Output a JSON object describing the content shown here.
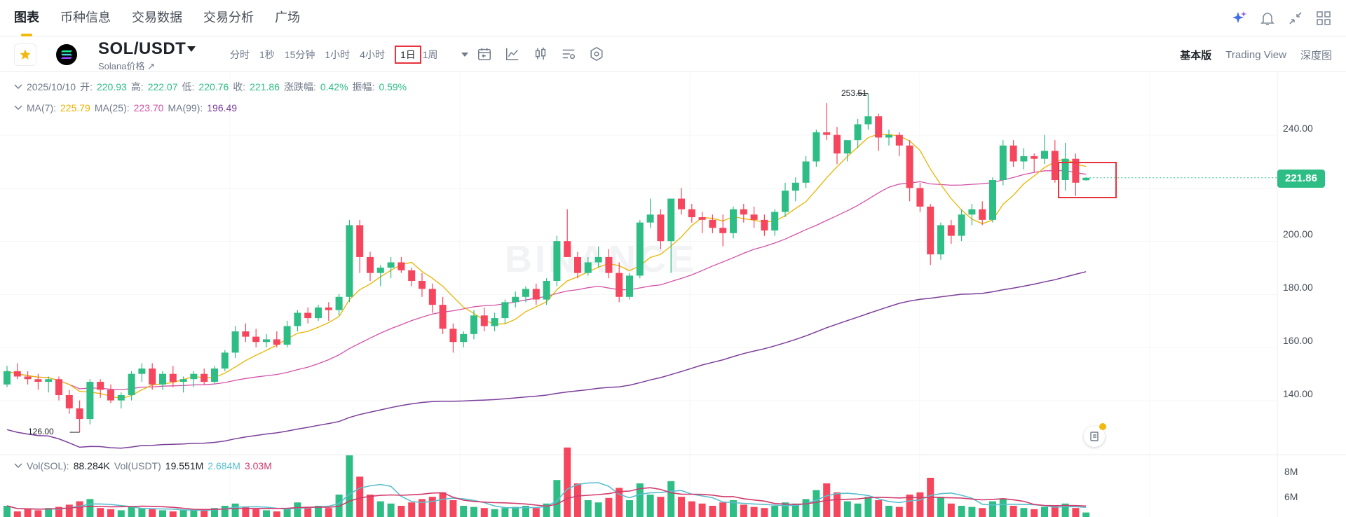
{
  "nav": {
    "tabs": [
      "图表",
      "币种信息",
      "交易数据",
      "交易分析",
      "广场"
    ],
    "active": 0
  },
  "symbol": {
    "pair": "SOL/USDT",
    "subtitle": "Solana价格 ↗",
    "intervals": [
      "分时",
      "1秒",
      "15分钟",
      "1小时",
      "4小时",
      "1日",
      "1周"
    ],
    "selected_interval": "1日"
  },
  "views": [
    "基本版",
    "Trading View",
    "深度图"
  ],
  "ohlc": {
    "date": "2025/10/10",
    "open_label": "开:",
    "open": "220.93",
    "high_label": "高:",
    "high": "222.07",
    "low_label": "低:",
    "low": "220.76",
    "close_label": "收:",
    "close": "221.86",
    "change_label": "涨跌幅:",
    "change": "0.42%",
    "amp_label": "振幅:",
    "amp": "0.59%"
  },
  "ma": {
    "ma7_label": "MA(7):",
    "ma7": "225.79",
    "ma25_label": "MA(25):",
    "ma25": "223.70",
    "ma99_label": "MA(99):",
    "ma99": "196.49"
  },
  "vol": {
    "sol_label": "Vol(SOL):",
    "sol": "88.284K",
    "usdt_label": "Vol(USDT)",
    "usdt": "19.551M",
    "ma_a": "2.684M",
    "ma_b": "3.03M"
  },
  "price_axis": [
    "240.00",
    "220.00",
    "200.00",
    "180.00",
    "160.00",
    "140.00"
  ],
  "vol_axis": [
    "8M",
    "6M"
  ],
  "current_price": "221.86",
  "high_marker": "253.51",
  "low_marker": "126.00",
  "watermark": "BINANCE",
  "colors": {
    "up": "#2ebd85",
    "down": "#f6465d",
    "accent": "#f0b90b",
    "ma7": "#e8b400",
    "ma25": "#d352a8",
    "ma99": "#7b3e9a"
  },
  "chart_data": {
    "type": "candlestick",
    "y_range": [
      118,
      260
    ],
    "candles": [
      [
        144,
        151,
        143,
        149
      ],
      [
        149,
        152,
        146,
        147
      ],
      [
        147,
        149,
        144,
        146
      ],
      [
        146,
        148,
        142,
        145
      ],
      [
        145,
        147,
        141,
        146
      ],
      [
        146,
        147,
        138,
        140
      ],
      [
        140,
        142,
        133,
        135
      ],
      [
        135,
        138,
        126,
        131
      ],
      [
        131,
        146,
        129,
        145
      ],
      [
        145,
        146,
        139,
        142
      ],
      [
        142,
        144,
        137,
        138
      ],
      [
        138,
        141,
        135,
        140
      ],
      [
        140,
        149,
        138,
        148
      ],
      [
        148,
        152,
        145,
        150
      ],
      [
        150,
        152,
        142,
        144
      ],
      [
        144,
        149,
        142,
        148
      ],
      [
        148,
        151,
        143,
        145
      ],
      [
        145,
        147,
        141,
        146
      ],
      [
        146,
        149,
        143,
        148
      ],
      [
        148,
        150,
        144,
        145
      ],
      [
        145,
        151,
        144,
        150
      ],
      [
        150,
        157,
        149,
        156
      ],
      [
        156,
        166,
        154,
        164
      ],
      [
        164,
        167,
        160,
        162
      ],
      [
        162,
        165,
        158,
        160
      ],
      [
        160,
        163,
        158,
        161
      ],
      [
        161,
        164,
        158,
        159
      ],
      [
        159,
        168,
        158,
        166
      ],
      [
        166,
        172,
        164,
        171
      ],
      [
        171,
        173,
        167,
        169
      ],
      [
        169,
        174,
        168,
        173
      ],
      [
        173,
        175,
        168,
        172
      ],
      [
        172,
        178,
        170,
        177
      ],
      [
        177,
        206,
        175,
        204
      ],
      [
        204,
        206,
        186,
        192
      ],
      [
        192,
        194,
        183,
        186
      ],
      [
        186,
        189,
        181,
        188
      ],
      [
        188,
        192,
        184,
        190
      ],
      [
        190,
        192,
        186,
        187
      ],
      [
        187,
        188,
        181,
        183
      ],
      [
        183,
        186,
        177,
        180
      ],
      [
        180,
        182,
        171,
        174
      ],
      [
        174,
        177,
        163,
        165
      ],
      [
        165,
        167,
        156,
        160
      ],
      [
        160,
        164,
        158,
        163
      ],
      [
        163,
        172,
        161,
        170
      ],
      [
        170,
        173,
        164,
        166
      ],
      [
        166,
        171,
        164,
        169
      ],
      [
        169,
        176,
        167,
        175
      ],
      [
        175,
        179,
        173,
        177
      ],
      [
        177,
        181,
        175,
        180
      ],
      [
        180,
        182,
        174,
        176
      ],
      [
        176,
        184,
        174,
        183
      ],
      [
        183,
        200,
        181,
        198
      ],
      [
        198,
        210,
        192,
        192
      ],
      [
        192,
        194,
        184,
        186
      ],
      [
        186,
        192,
        185,
        190
      ],
      [
        190,
        196,
        188,
        192
      ],
      [
        192,
        195,
        184,
        186
      ],
      [
        186,
        190,
        175,
        177
      ],
      [
        177,
        186,
        176,
        185
      ],
      [
        185,
        206,
        184,
        205
      ],
      [
        205,
        214,
        203,
        208
      ],
      [
        208,
        210,
        195,
        198
      ],
      [
        198,
        214,
        186,
        214
      ],
      [
        214,
        218,
        208,
        210
      ],
      [
        210,
        212,
        205,
        207
      ],
      [
        207,
        209,
        201,
        206
      ],
      [
        206,
        208,
        201,
        203
      ],
      [
        203,
        208,
        196,
        201
      ],
      [
        201,
        211,
        199,
        210
      ],
      [
        210,
        212,
        205,
        208
      ],
      [
        208,
        211,
        203,
        206
      ],
      [
        206,
        208,
        200,
        202
      ],
      [
        202,
        210,
        200,
        209
      ],
      [
        209,
        220,
        207,
        217
      ],
      [
        217,
        222,
        213,
        220
      ],
      [
        220,
        230,
        218,
        228
      ],
      [
        228,
        240,
        226,
        239
      ],
      [
        239,
        250,
        236,
        238
      ],
      [
        238,
        241,
        227,
        231
      ],
      [
        231,
        236,
        228,
        236
      ],
      [
        236,
        244,
        233,
        242
      ],
      [
        242,
        253.5,
        240,
        245
      ],
      [
        245,
        246,
        232,
        237
      ],
      [
        237,
        240,
        234,
        238
      ],
      [
        238,
        239,
        230,
        234
      ],
      [
        234,
        236,
        213,
        218
      ],
      [
        218,
        220,
        209,
        211
      ],
      [
        211,
        212,
        189,
        193
      ],
      [
        193,
        205,
        191,
        204
      ],
      [
        204,
        206,
        197,
        200
      ],
      [
        200,
        210,
        198,
        208
      ],
      [
        208,
        212,
        204,
        210
      ],
      [
        210,
        213,
        204,
        206
      ],
      [
        206,
        222,
        205,
        221
      ],
      [
        221,
        236,
        219,
        234
      ],
      [
        234,
        236,
        226,
        228
      ],
      [
        228,
        233,
        225,
        230
      ],
      [
        230,
        231,
        224,
        229
      ],
      [
        229,
        238,
        227,
        232
      ],
      [
        232,
        236,
        220,
        221
      ],
      [
        221,
        235,
        217,
        229
      ],
      [
        229,
        231,
        215,
        220
      ],
      [
        220.93,
        222.07,
        220.76,
        221.86
      ]
    ],
    "volume_bars_relative": [
      0.1,
      0.05,
      0.07,
      0.06,
      0.08,
      0.09,
      0.11,
      0.14,
      0.16,
      0.08,
      0.07,
      0.06,
      0.09,
      0.08,
      0.07,
      0.06,
      0.05,
      0.06,
      0.07,
      0.06,
      0.08,
      0.1,
      0.12,
      0.09,
      0.07,
      0.06,
      0.05,
      0.08,
      0.13,
      0.09,
      0.1,
      0.08,
      0.2,
      0.55,
      0.36,
      0.2,
      0.14,
      0.12,
      0.1,
      0.13,
      0.16,
      0.18,
      0.22,
      0.15,
      0.1,
      0.09,
      0.08,
      0.07,
      0.08,
      0.09,
      0.1,
      0.08,
      0.12,
      0.33,
      0.62,
      0.3,
      0.15,
      0.13,
      0.17,
      0.26,
      0.15,
      0.3,
      0.2,
      0.18,
      0.32,
      0.18,
      0.14,
      0.12,
      0.1,
      0.13,
      0.15,
      0.11,
      0.09,
      0.08,
      0.1,
      0.13,
      0.12,
      0.16,
      0.24,
      0.3,
      0.22,
      0.14,
      0.12,
      0.18,
      0.15,
      0.1,
      0.09,
      0.2,
      0.22,
      0.35,
      0.18,
      0.12,
      0.1,
      0.09,
      0.08,
      0.14,
      0.16,
      0.1,
      0.08,
      0.07,
      0.09,
      0.1,
      0.12,
      0.08,
      0.04
    ]
  }
}
